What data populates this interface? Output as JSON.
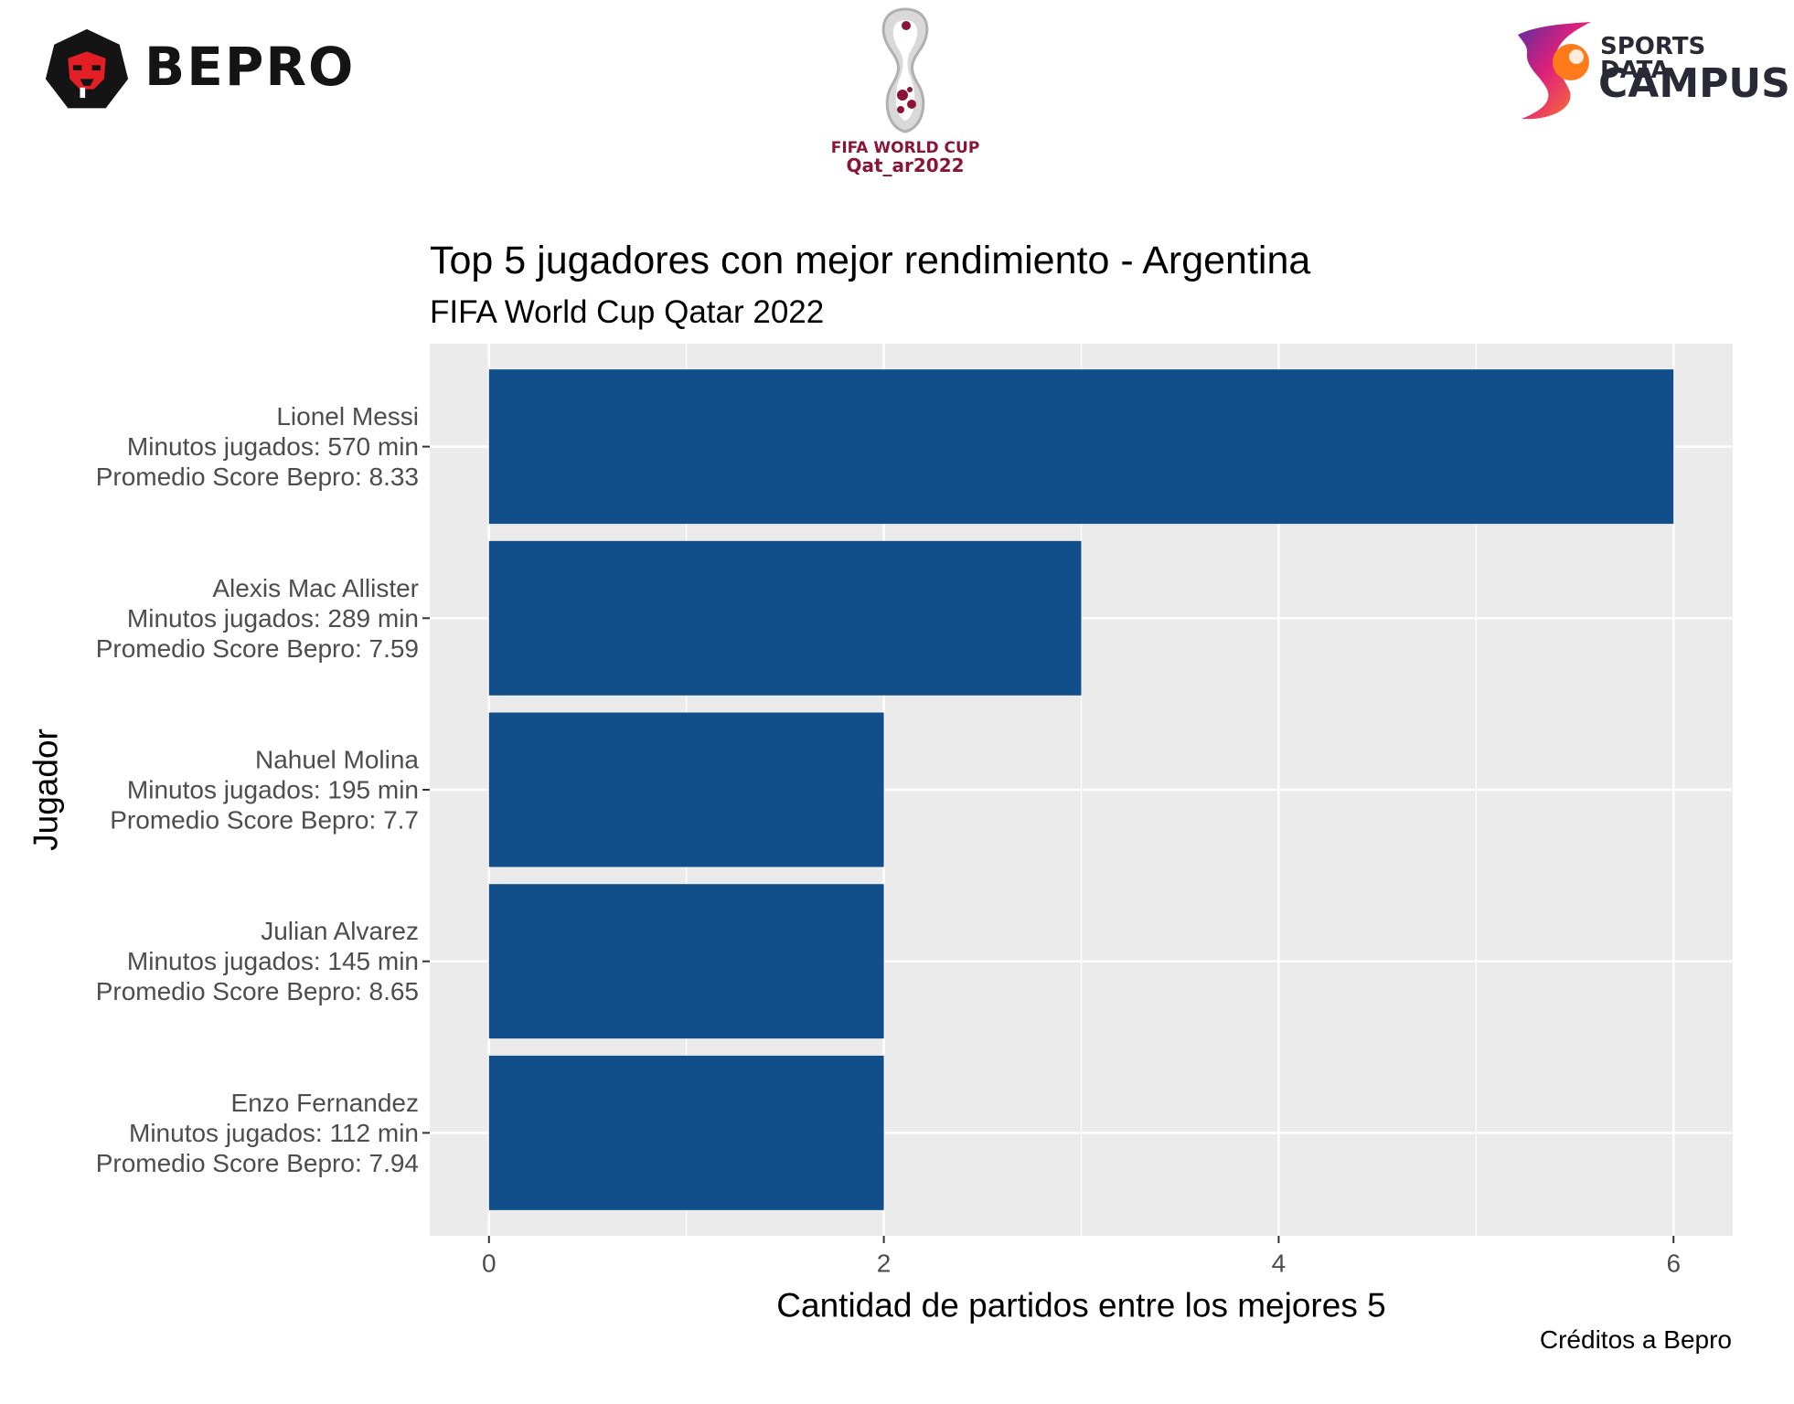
{
  "logos": {
    "bepro": {
      "text": "BEPRO"
    },
    "world_cup": {
      "line1": "FIFA WORLD CUP",
      "line2": "Qat_ar2022"
    },
    "sports_data_campus": {
      "line1": "SPORTS DATA",
      "line2": "CAMPUS"
    }
  },
  "colors": {
    "bar": "#124e89",
    "panel": "#ebebeb",
    "grid": "#ffffff",
    "axis_text": "#4d4d4d"
  },
  "chart_data": {
    "type": "bar",
    "orientation": "horizontal",
    "title": "Top 5 jugadores con mejor rendimiento - Argentina",
    "subtitle": "FIFA World Cup Qatar 2022",
    "xlabel": "Cantidad de partidos entre los mejores 5",
    "ylabel": "Jugador",
    "xlim": [
      -0.3,
      6.3
    ],
    "x_ticks": [
      0,
      2,
      4,
      6
    ],
    "x_tick_labels": [
      "0",
      "2",
      "4",
      "6"
    ],
    "grid": true,
    "legend": "none",
    "categories": [
      [
        "Lionel Messi",
        "Minutos jugados: 570 min",
        "Promedio Score Bepro: 8.33"
      ],
      [
        "Alexis Mac Allister",
        "Minutos jugados: 289 min",
        "Promedio Score Bepro: 7.59"
      ],
      [
        "Nahuel Molina",
        "Minutos jugados: 195 min",
        "Promedio Score Bepro: 7.7"
      ],
      [
        "Julian Alvarez",
        "Minutos jugados: 145 min",
        "Promedio Score Bepro: 8.65"
      ],
      [
        "Enzo Fernandez",
        "Minutos jugados: 112 min",
        "Promedio Score Bepro: 7.94"
      ]
    ],
    "values": [
      6,
      3,
      2,
      2,
      2
    ]
  },
  "caption": "Créditos a Bepro"
}
